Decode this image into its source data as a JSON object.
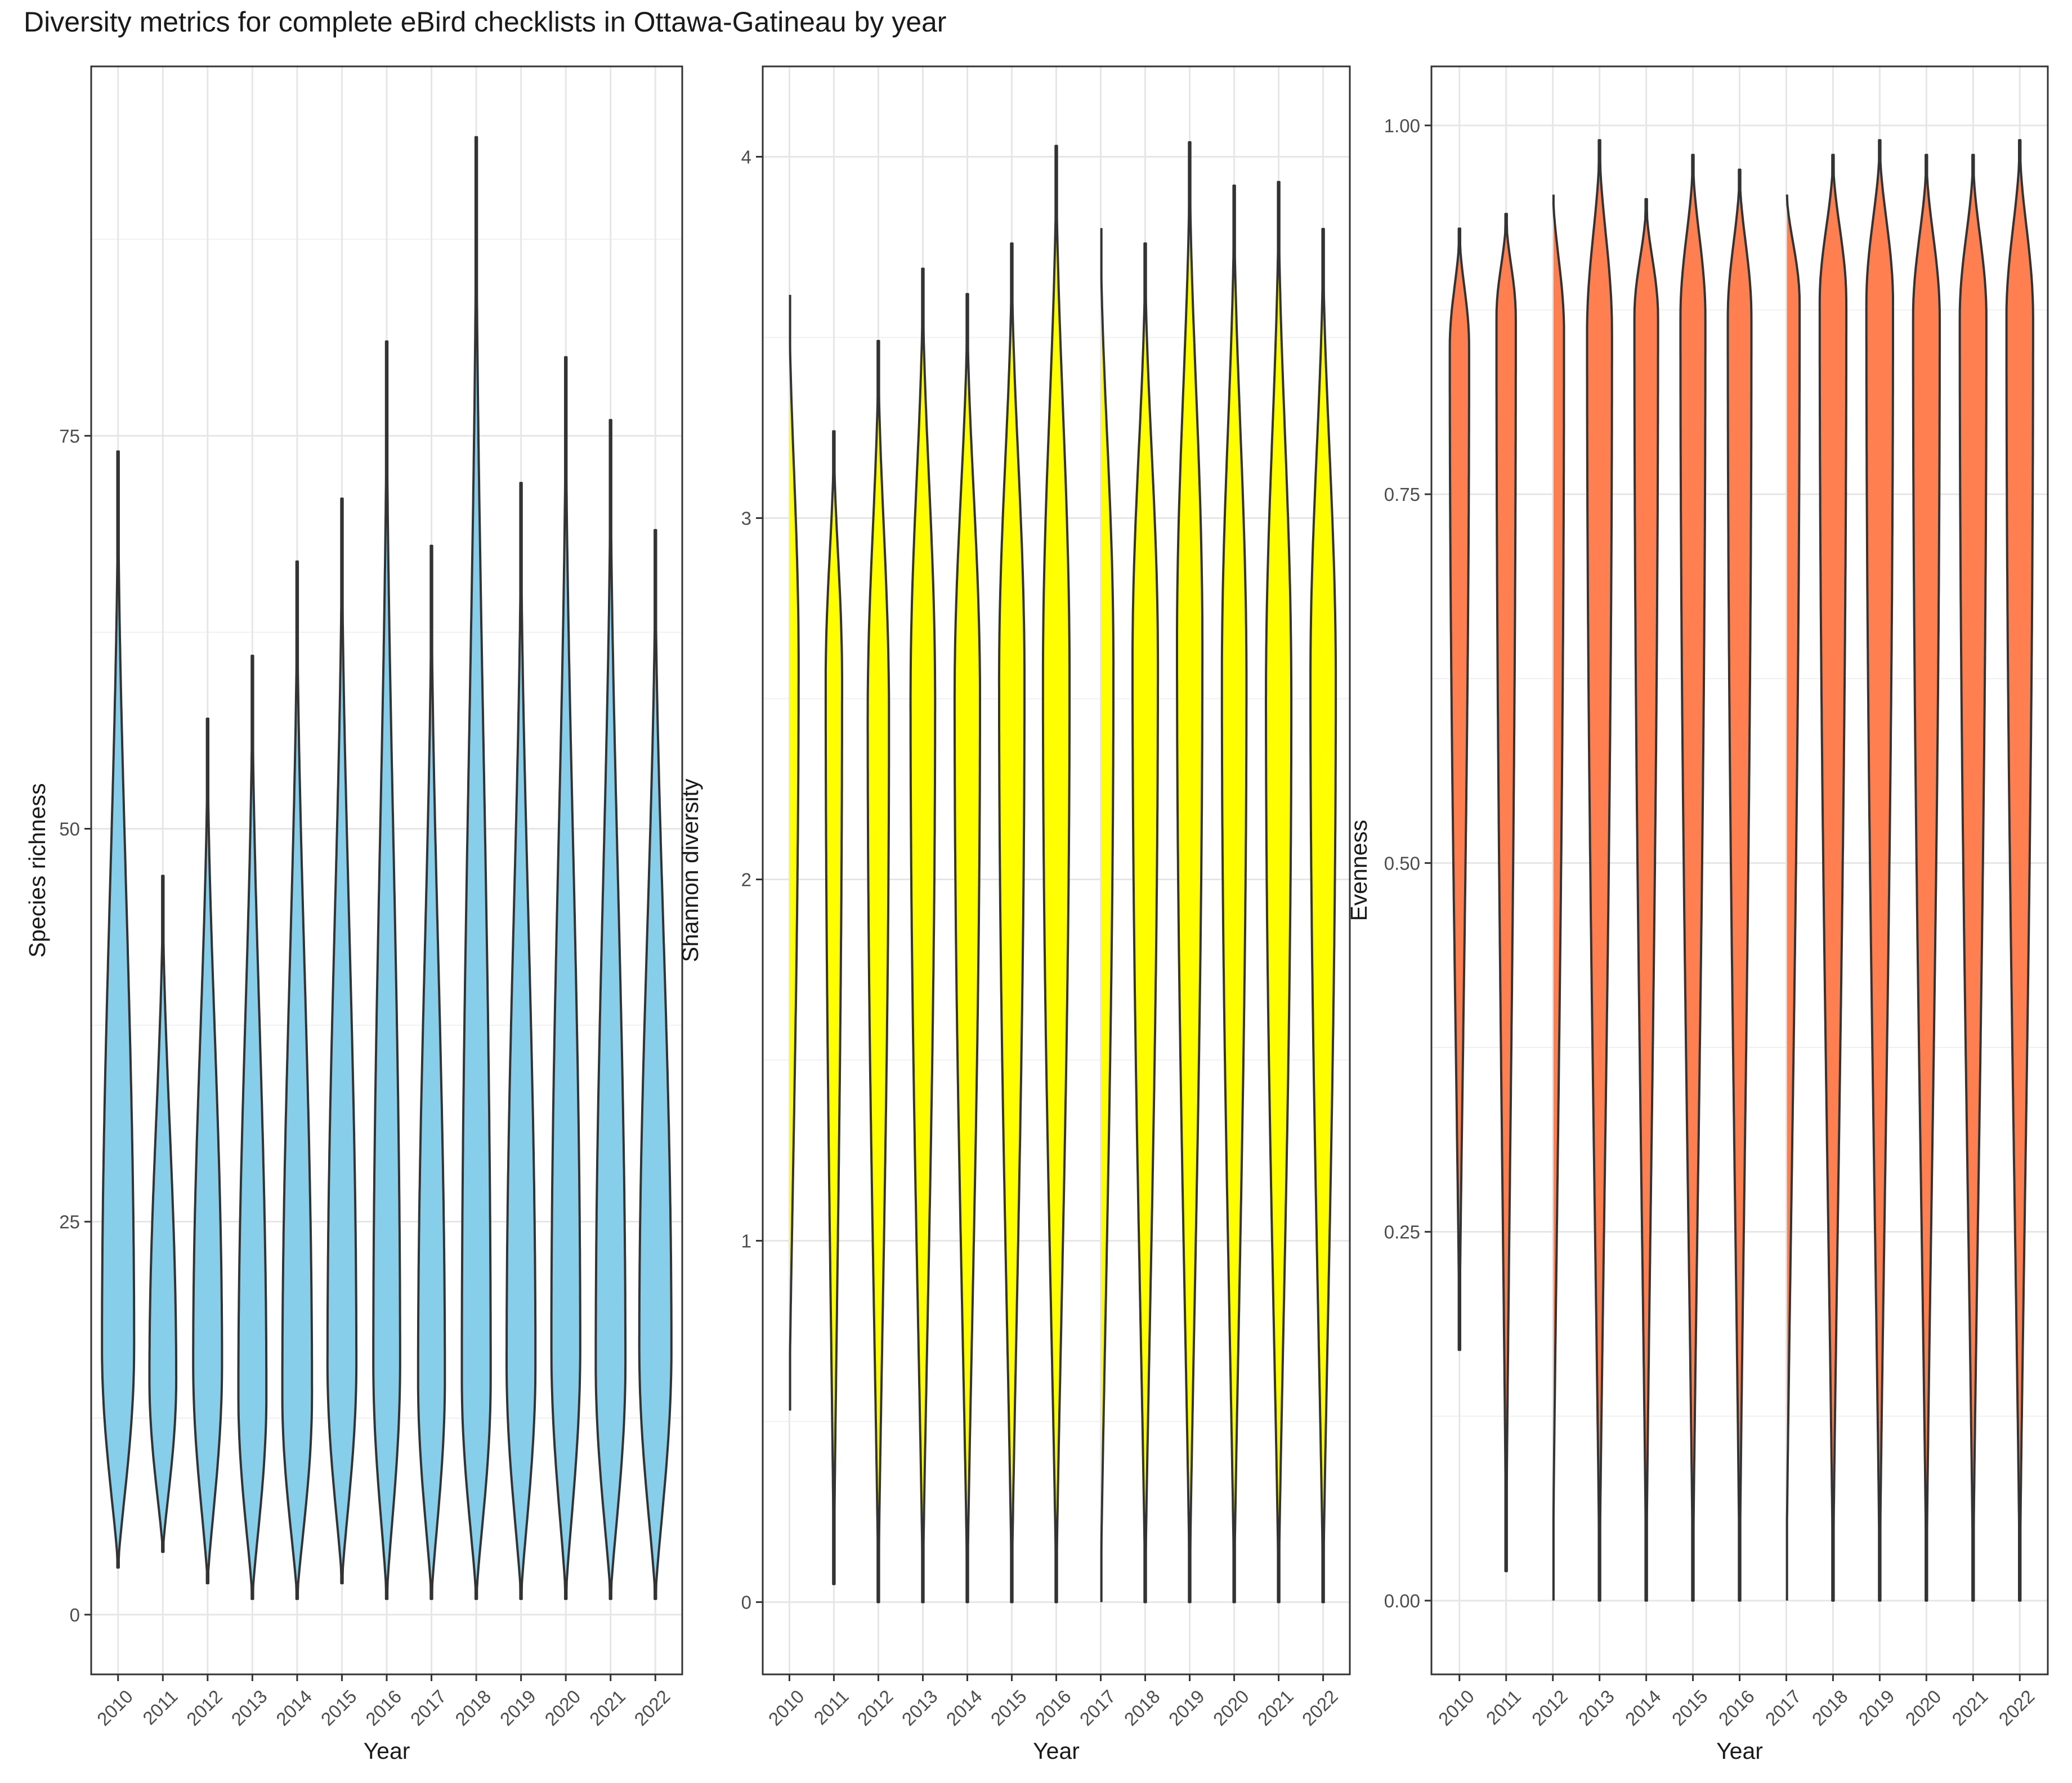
{
  "title": "Diversity metrics for complete eBird checklists in Ottawa-Gatineau by year",
  "chart_data": [
    {
      "type": "violin",
      "xlabel": "Year",
      "ylabel": "Species richness",
      "fill": "#87CEEB",
      "ylim": [
        -3.8,
        98.5
      ],
      "yticks": [
        0,
        25,
        50,
        75
      ],
      "ytick_labels": [
        "0",
        "25",
        "50",
        "75"
      ],
      "grid": true,
      "categories": [
        "2010",
        "2011",
        "2012",
        "2013",
        "2014",
        "2015",
        "2016",
        "2017",
        "2018",
        "2019",
        "2020",
        "2021",
        "2022"
      ],
      "ranges": [
        [
          3,
          74
        ],
        [
          4,
          47
        ],
        [
          2,
          57
        ],
        [
          1,
          61
        ],
        [
          1,
          67
        ],
        [
          2,
          71
        ],
        [
          1,
          81
        ],
        [
          1,
          68
        ],
        [
          1,
          94
        ],
        [
          1,
          72
        ],
        [
          1,
          80
        ],
        [
          1,
          76
        ],
        [
          1,
          69
        ]
      ],
      "modes": [
        17,
        15,
        16,
        14,
        14,
        16,
        16,
        15,
        15,
        16,
        17,
        16,
        17
      ],
      "max_halfwidth": [
        0.78,
        0.65,
        0.7,
        0.68,
        0.72,
        0.7,
        0.65,
        0.65,
        0.7,
        0.7,
        0.7,
        0.72,
        0.78
      ]
    },
    {
      "type": "violin",
      "xlabel": "Year",
      "ylabel": "Shannon diversity",
      "fill": "#FFFF00",
      "ylim": [
        -0.2,
        4.25
      ],
      "yticks": [
        0,
        1,
        2,
        3,
        4
      ],
      "ytick_labels": [
        "0",
        "1",
        "2",
        "3",
        "4"
      ],
      "grid": true,
      "categories": [
        "2010",
        "2011",
        "2012",
        "2013",
        "2014",
        "2015",
        "2016",
        "2017",
        "2018",
        "2019",
        "2020",
        "2021",
        "2022"
      ],
      "ranges": [
        [
          0.53,
          3.64
        ],
        [
          0.05,
          3.24
        ],
        [
          0,
          3.49
        ],
        [
          0,
          3.69
        ],
        [
          0,
          3.62
        ],
        [
          0,
          3.76
        ],
        [
          0,
          4.03
        ],
        [
          0,
          3.83
        ],
        [
          0,
          3.76
        ],
        [
          0,
          4.04
        ],
        [
          0,
          3.92
        ],
        [
          0,
          3.93
        ],
        [
          0,
          3.8
        ]
      ],
      "modes": [
        2.6,
        2.55,
        2.45,
        2.5,
        2.5,
        2.55,
        2.55,
        2.6,
        2.6,
        2.65,
        2.55,
        2.5,
        2.55
      ],
      "max_halfwidth": [
        0.45,
        0.4,
        0.52,
        0.6,
        0.62,
        0.62,
        0.65,
        0.62,
        0.62,
        0.62,
        0.6,
        0.62,
        0.62
      ]
    },
    {
      "type": "violin",
      "xlabel": "Year",
      "ylabel": "Evenness",
      "fill": "#FF7F50",
      "ylim": [
        -0.05,
        1.04
      ],
      "yticks": [
        0,
        0.25,
        0.5,
        0.75,
        1.0
      ],
      "ytick_labels": [
        "0.00",
        "0.25",
        "0.50",
        "0.75",
        "1.00"
      ],
      "grid": true,
      "categories": [
        "2010",
        "2011",
        "2012",
        "2013",
        "2014",
        "2015",
        "2016",
        "2017",
        "2018",
        "2019",
        "2020",
        "2021",
        "2022"
      ],
      "ranges": [
        [
          0.17,
          0.93
        ],
        [
          0.02,
          0.94
        ],
        [
          0,
          0.96
        ],
        [
          0,
          0.99
        ],
        [
          0,
          0.95
        ],
        [
          0,
          0.98
        ],
        [
          0,
          0.97
        ],
        [
          0,
          0.96
        ],
        [
          0,
          0.98
        ],
        [
          0,
          0.99
        ],
        [
          0,
          0.98
        ],
        [
          0,
          0.98
        ],
        [
          0,
          0.99
        ]
      ],
      "modes": [
        0.85,
        0.87,
        0.86,
        0.86,
        0.87,
        0.87,
        0.87,
        0.88,
        0.88,
        0.88,
        0.87,
        0.87,
        0.87
      ],
      "max_halfwidth": [
        0.45,
        0.45,
        0.52,
        0.58,
        0.55,
        0.58,
        0.55,
        0.62,
        0.62,
        0.62,
        0.62,
        0.62,
        0.62
      ]
    }
  ]
}
